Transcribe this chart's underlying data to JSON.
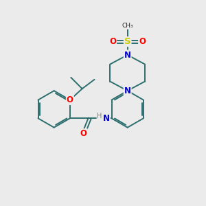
{
  "background_color": "#ebebeb",
  "bond_color": "#2d6e6e",
  "atom_colors": {
    "O": "#ff0000",
    "N": "#0000cc",
    "S": "#cccc00",
    "H": "#777777",
    "C": "#000000"
  },
  "figsize": [
    3.0,
    3.0
  ],
  "dpi": 100,
  "lw": 1.4,
  "fs": 8.5
}
